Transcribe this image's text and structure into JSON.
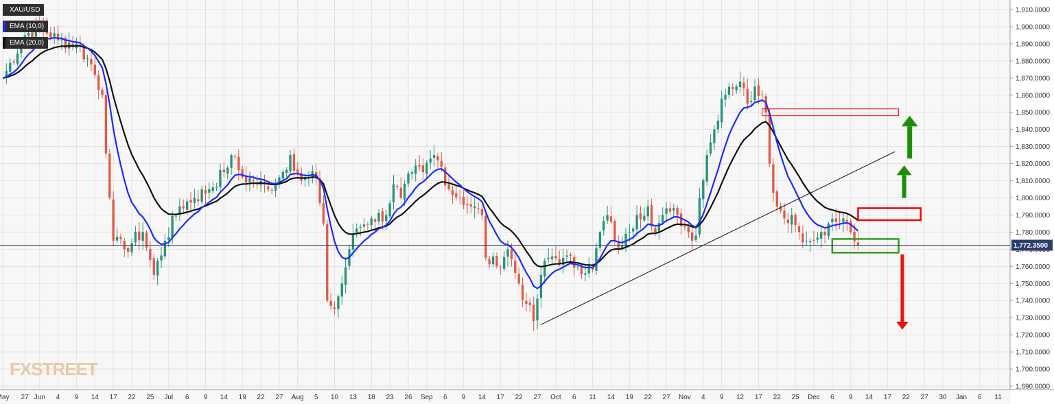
{
  "symbol": "XAU/USD",
  "legend": [
    {
      "label": "XAU/USD",
      "color": "#2e2e2e"
    },
    {
      "label": "EMA (10,0)",
      "color": "#1a2bff"
    },
    {
      "label": "EMA (20,0)",
      "color": "#111111"
    }
  ],
  "watermark": "FXSTREET",
  "last_price_label": "1,772.3500",
  "colors": {
    "up": "#26937a",
    "down": "#e05a47",
    "ema10": "#1a2bff",
    "ema20": "#111111",
    "trendline": "#111111",
    "grid": "#e2e2e2"
  },
  "chart_data": {
    "type": "candlestick",
    "y_axis": {
      "min": 1688,
      "max": 1914,
      "ticks": [
        1690,
        1700,
        1710,
        1720,
        1730,
        1740,
        1750,
        1760,
        1770,
        1780,
        1790,
        1800,
        1810,
        1820,
        1830,
        1840,
        1850,
        1860,
        1870,
        1880,
        1890,
        1900,
        1910
      ],
      "tick_labels": [
        "1,690.0000",
        "1,700.0000",
        "1,710.0000",
        "1,720.0000",
        "1,730.0000",
        "1,740.0000",
        "1,750.0000",
        "1,760.0000",
        "1,770.0000",
        "1,780.0000",
        "1,790.0000",
        "1,800.0000",
        "1,810.0000",
        "1,820.0000",
        "1,830.0000",
        "1,840.0000",
        "1,850.0000",
        "1,860.0000",
        "1,870.0000",
        "1,880.0000",
        "1,890.0000",
        "1,900.0000",
        "1,910.0000"
      ]
    },
    "x_axis_labels": [
      {
        "i": 0,
        "label": "May"
      },
      {
        "i": 6,
        "label": "27"
      },
      {
        "i": 10,
        "label": "Jun"
      },
      {
        "i": 15,
        "label": "4"
      },
      {
        "i": 20,
        "label": "9"
      },
      {
        "i": 25,
        "label": "14"
      },
      {
        "i": 30,
        "label": "17"
      },
      {
        "i": 35,
        "label": "22"
      },
      {
        "i": 40,
        "label": "25"
      },
      {
        "i": 45,
        "label": "Jul"
      },
      {
        "i": 50,
        "label": "6"
      },
      {
        "i": 55,
        "label": "9"
      },
      {
        "i": 60,
        "label": "14"
      },
      {
        "i": 65,
        "label": "19"
      },
      {
        "i": 70,
        "label": "22"
      },
      {
        "i": 75,
        "label": "27"
      },
      {
        "i": 80,
        "label": "Aug"
      },
      {
        "i": 85,
        "label": "5"
      },
      {
        "i": 90,
        "label": "10"
      },
      {
        "i": 95,
        "label": "13"
      },
      {
        "i": 100,
        "label": "18"
      },
      {
        "i": 105,
        "label": "23"
      },
      {
        "i": 110,
        "label": "26"
      },
      {
        "i": 115,
        "label": "Sep"
      },
      {
        "i": 120,
        "label": "6"
      },
      {
        "i": 125,
        "label": "9"
      },
      {
        "i": 130,
        "label": "14"
      },
      {
        "i": 135,
        "label": "17"
      },
      {
        "i": 140,
        "label": "22"
      },
      {
        "i": 145,
        "label": "27"
      },
      {
        "i": 150,
        "label": "Oct"
      },
      {
        "i": 155,
        "label": "6"
      },
      {
        "i": 160,
        "label": "11"
      },
      {
        "i": 165,
        "label": "14"
      },
      {
        "i": 170,
        "label": "19"
      },
      {
        "i": 175,
        "label": "22"
      },
      {
        "i": 180,
        "label": "27"
      },
      {
        "i": 185,
        "label": "Nov"
      },
      {
        "i": 190,
        "label": "4"
      },
      {
        "i": 195,
        "label": "9"
      },
      {
        "i": 200,
        "label": "12"
      },
      {
        "i": 205,
        "label": "17"
      },
      {
        "i": 210,
        "label": "22"
      },
      {
        "i": 215,
        "label": "25"
      },
      {
        "i": 220,
        "label": "Dec"
      },
      {
        "i": 225,
        "label": "6"
      },
      {
        "i": 230,
        "label": "9"
      },
      {
        "i": 235,
        "label": "14"
      },
      {
        "i": 240,
        "label": "17"
      },
      {
        "i": 245,
        "label": "22"
      },
      {
        "i": 250,
        "label": "27"
      },
      {
        "i": 255,
        "label": "30"
      },
      {
        "i": 260,
        "label": "Jan"
      },
      {
        "i": 265,
        "label": "6"
      },
      {
        "i": 270,
        "label": "11"
      }
    ],
    "anchors": [
      [
        0,
        1870
      ],
      [
        6,
        1895
      ],
      [
        10,
        1900
      ],
      [
        15,
        1892
      ],
      [
        20,
        1890
      ],
      [
        24,
        1878
      ],
      [
        27,
        1860
      ],
      [
        29,
        1800
      ],
      [
        30,
        1775
      ],
      [
        33,
        1770
      ],
      [
        38,
        1780
      ],
      [
        41,
        1755
      ],
      [
        44,
        1775
      ],
      [
        48,
        1795
      ],
      [
        52,
        1800
      ],
      [
        56,
        1805
      ],
      [
        60,
        1815
      ],
      [
        62,
        1825
      ],
      [
        65,
        1812
      ],
      [
        68,
        1810
      ],
      [
        72,
        1805
      ],
      [
        76,
        1815
      ],
      [
        78,
        1825
      ],
      [
        81,
        1810
      ],
      [
        85,
        1812
      ],
      [
        87,
        1785
      ],
      [
        88,
        1740
      ],
      [
        90,
        1735
      ],
      [
        92,
        1750
      ],
      [
        94,
        1770
      ],
      [
        96,
        1782
      ],
      [
        100,
        1788
      ],
      [
        104,
        1790
      ],
      [
        106,
        1808
      ],
      [
        108,
        1800
      ],
      [
        111,
        1815
      ],
      [
        114,
        1815
      ],
      [
        117,
        1825
      ],
      [
        119,
        1818
      ],
      [
        121,
        1805
      ],
      [
        124,
        1800
      ],
      [
        127,
        1795
      ],
      [
        130,
        1790
      ],
      [
        131,
        1765
      ],
      [
        134,
        1760
      ],
      [
        137,
        1770
      ],
      [
        140,
        1750
      ],
      [
        142,
        1738
      ],
      [
        144,
        1728
      ],
      [
        146,
        1755
      ],
      [
        148,
        1765
      ],
      [
        152,
        1765
      ],
      [
        156,
        1760
      ],
      [
        160,
        1758
      ],
      [
        162,
        1780
      ],
      [
        164,
        1790
      ],
      [
        166,
        1775
      ],
      [
        168,
        1772
      ],
      [
        170,
        1780
      ],
      [
        172,
        1790
      ],
      [
        175,
        1795
      ],
      [
        177,
        1780
      ],
      [
        179,
        1790
      ],
      [
        181,
        1792
      ],
      [
        183,
        1790
      ],
      [
        186,
        1780
      ],
      [
        188,
        1778
      ],
      [
        189,
        1800
      ],
      [
        191,
        1825
      ],
      [
        193,
        1840
      ],
      [
        195,
        1858
      ],
      [
        197,
        1865
      ],
      [
        200,
        1868
      ],
      [
        202,
        1855
      ],
      [
        204,
        1865
      ],
      [
        206,
        1860
      ],
      [
        207,
        1850
      ],
      [
        208,
        1820
      ],
      [
        210,
        1795
      ],
      [
        212,
        1788
      ],
      [
        214,
        1790
      ],
      [
        216,
        1780
      ],
      [
        218,
        1775
      ],
      [
        220,
        1775
      ],
      [
        222,
        1780
      ],
      [
        224,
        1785
      ],
      [
        226,
        1786
      ],
      [
        228,
        1788
      ],
      [
        230,
        1780
      ],
      [
        232,
        1772
      ]
    ],
    "annotations": {
      "resistance_zone_upper": [
        1848,
        1852
      ],
      "resistance_box": [
        1787,
        1794
      ],
      "support_box": [
        1768,
        1776
      ],
      "trendline": {
        "from": {
          "i": 146,
          "y": 1726
        },
        "to": {
          "i": 242,
          "y": 1827
        }
      },
      "last_price": 1772.35
    }
  }
}
